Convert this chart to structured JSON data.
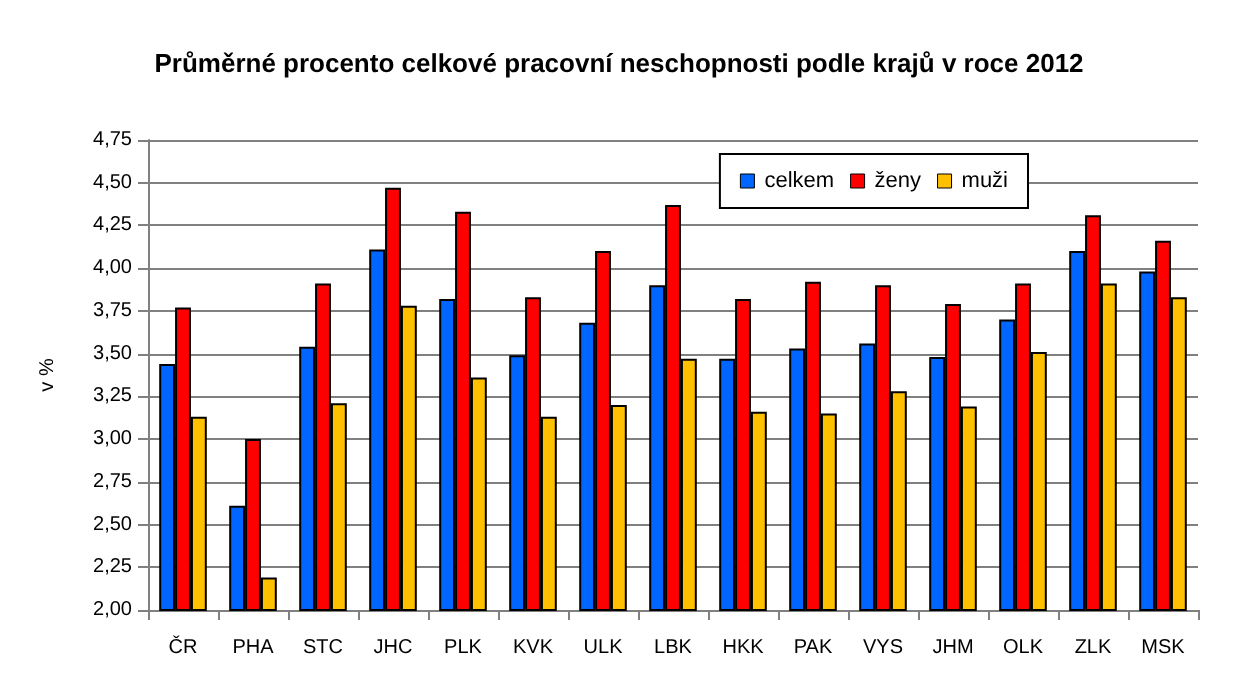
{
  "chart_data": {
    "type": "bar",
    "title": "Průměrné procento celkové pracovní neschopnosti podle krajů v roce 2012",
    "ylabel": "v %",
    "categories": [
      "ČR",
      "PHA",
      "STC",
      "JHC",
      "PLK",
      "KVK",
      "ULK",
      "LBK",
      "HKK",
      "PAK",
      "VYS",
      "JHM",
      "OLK",
      "ZLK",
      "MSK"
    ],
    "series": [
      {
        "name": "celkem",
        "color": "#0066ff",
        "values": [
          3.44,
          2.61,
          3.54,
          4.11,
          3.82,
          3.49,
          3.68,
          3.9,
          3.47,
          3.53,
          3.56,
          3.48,
          3.7,
          4.1,
          3.98
        ]
      },
      {
        "name": "ženy",
        "color": "#ff0000",
        "values": [
          3.77,
          3.0,
          3.91,
          4.47,
          4.33,
          3.83,
          4.1,
          4.37,
          3.82,
          3.92,
          3.9,
          3.79,
          3.91,
          4.31,
          4.16
        ]
      },
      {
        "name": "muži",
        "color": "#ffc000",
        "values": [
          3.13,
          2.19,
          3.21,
          3.78,
          3.36,
          3.13,
          3.2,
          3.47,
          3.16,
          3.15,
          3.28,
          3.19,
          3.51,
          3.91,
          3.83
        ]
      }
    ],
    "ylim": [
      2,
      4.75
    ],
    "yticks": [
      {
        "value": 2,
        "label": "2,00"
      },
      {
        "value": 2.25,
        "label": "2,25"
      },
      {
        "value": 2.5,
        "label": "2,50"
      },
      {
        "value": 2.75,
        "label": "2,75"
      },
      {
        "value": 3,
        "label": "3,00"
      },
      {
        "value": 3.25,
        "label": "3,25"
      },
      {
        "value": 3.5,
        "label": "3,50"
      },
      {
        "value": 3.75,
        "label": "3,75"
      },
      {
        "value": 4,
        "label": "4,00"
      },
      {
        "value": 4.25,
        "label": "4,25"
      },
      {
        "value": 4.5,
        "label": "4,50"
      },
      {
        "value": 4.75,
        "label": "4,75"
      }
    ],
    "grid": "y",
    "legend": "top right"
  }
}
